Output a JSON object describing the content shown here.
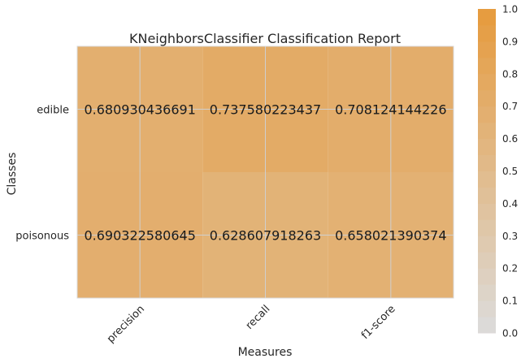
{
  "chart_data": {
    "type": "heatmap",
    "title": "KNeighborsClassifier Classification Report",
    "xlabel": "Measures",
    "ylabel": "Classes",
    "x_categories": [
      "precision",
      "recall",
      "f1-score"
    ],
    "y_categories": [
      "edible",
      "poisonous"
    ],
    "cells": [
      {
        "row": "edible",
        "col": "precision",
        "value": 0.680930436691,
        "label": "0.680930436691"
      },
      {
        "row": "edible",
        "col": "recall",
        "value": 0.737580223437,
        "label": "0.737580223437"
      },
      {
        "row": "edible",
        "col": "f1-score",
        "value": 0.708124144226,
        "label": "0.708124144226"
      },
      {
        "row": "poisonous",
        "col": "precision",
        "value": 0.690322580645,
        "label": "0.690322580645"
      },
      {
        "row": "poisonous",
        "col": "recall",
        "value": 0.628607918263,
        "label": "0.628607918263"
      },
      {
        "row": "poisonous",
        "col": "f1-score",
        "value": 0.658021390374,
        "label": "0.658021390374"
      }
    ],
    "colorbar": {
      "range": [
        0.0,
        1.0
      ],
      "ticks": [
        "0.0",
        "0.1",
        "0.2",
        "0.3",
        "0.4",
        "0.5",
        "0.6",
        "0.7",
        "0.8",
        "0.9",
        "1.0"
      ],
      "color_low": "#dcdcdc",
      "color_high": "#e69a3c"
    },
    "grid": true
  }
}
